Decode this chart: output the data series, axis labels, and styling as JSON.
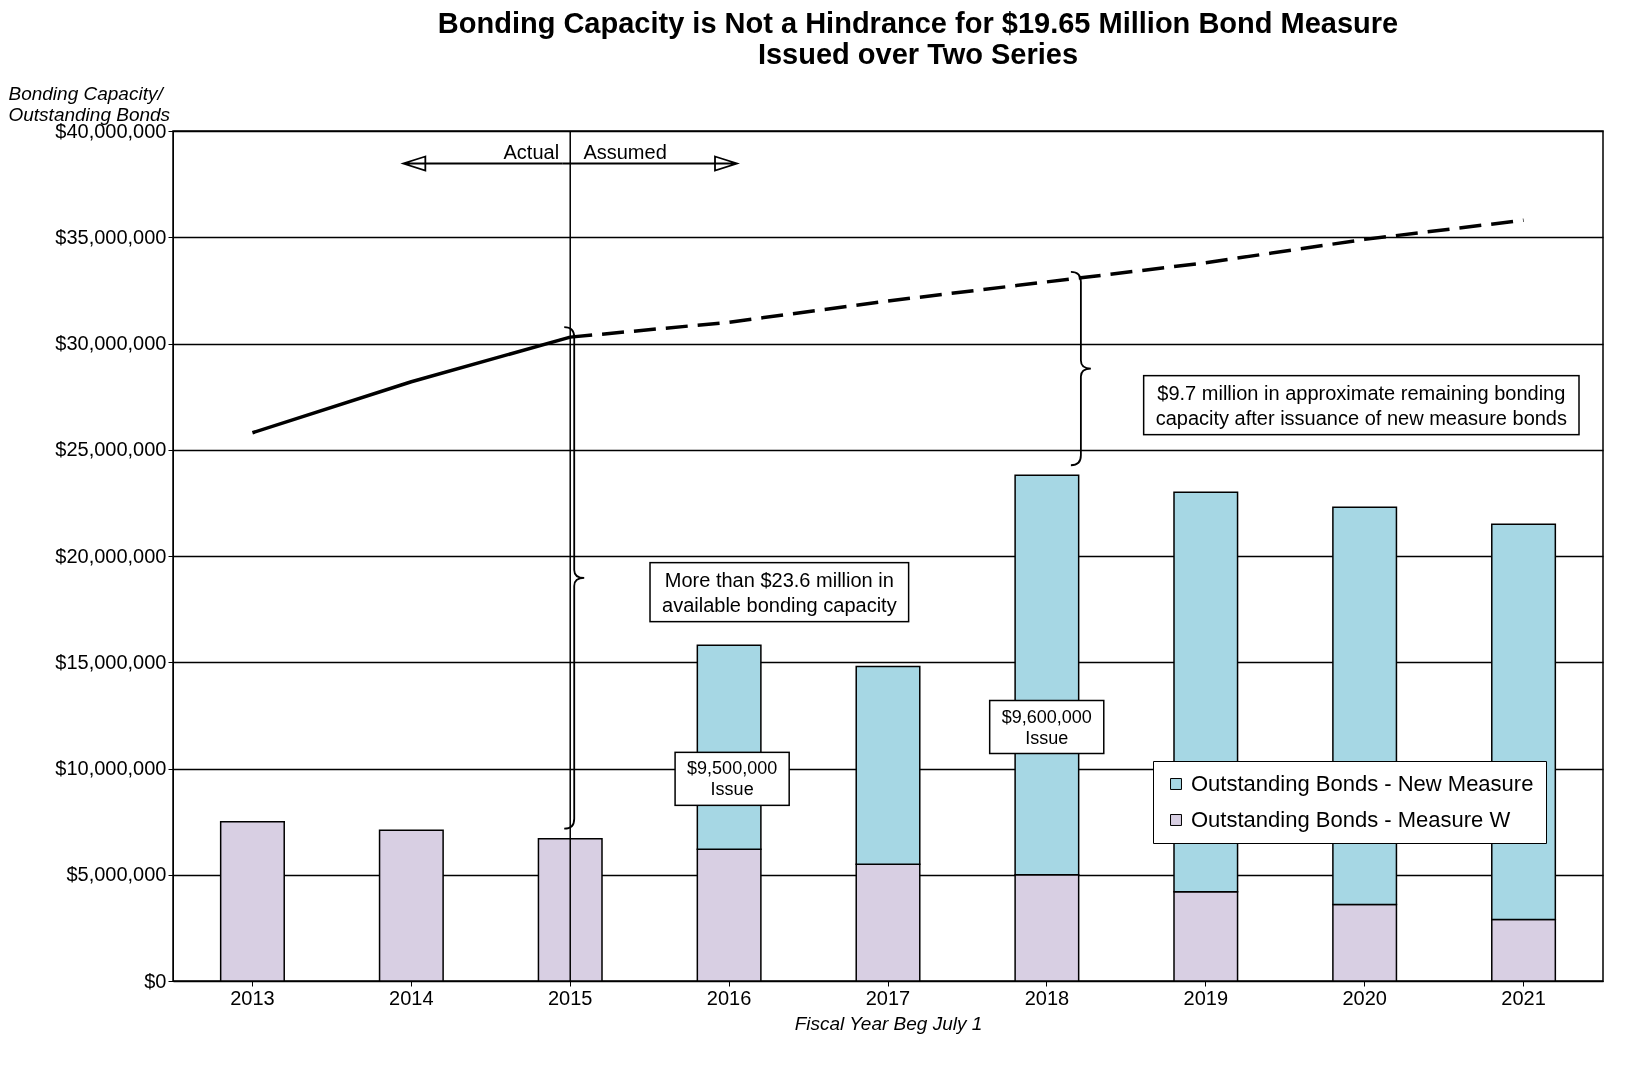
{
  "chart_data": {
    "type": "bar",
    "title": "Bonding Capacity is Not a Hindrance for $19.65 Million Bond Measure\nIssued over Two Series",
    "xlabel": "Fiscal Year Beg July 1",
    "ylabel": "Bonding Capacity/\nOutstanding Bonds",
    "categories": [
      "2013",
      "2014",
      "2015",
      "2016",
      "2017",
      "2018",
      "2019",
      "2020",
      "2021"
    ],
    "stacked": true,
    "series": [
      {
        "name": "Outstanding Bonds - Measure W",
        "color": "#d8cfe3",
        "values": [
          7500000,
          7100000,
          6700000,
          6200000,
          5500000,
          5000000,
          4200000,
          3600000,
          2900000
        ]
      },
      {
        "name": "Outstanding Bonds - New Measure",
        "color": "#a6d7e4",
        "values": [
          null,
          null,
          null,
          9600000,
          9300000,
          18800000,
          18800000,
          18700000,
          18600000
        ]
      },
      {
        "type": "line",
        "color": "#000000",
        "line_style": "solid",
        "values": [
          25800000,
          28200000,
          30300000,
          null,
          null,
          null,
          null,
          null,
          null
        ]
      },
      {
        "type": "line",
        "color": "#000000",
        "line_style": "dashed",
        "values": [
          null,
          null,
          30300000,
          31000000,
          32000000,
          32900000,
          33800000,
          34900000,
          35800000
        ]
      }
    ],
    "ylim": [
      0,
      40000000
    ],
    "yticks": [
      {
        "value": 0,
        "label": "$0"
      },
      {
        "value": 5000000,
        "label": "$5,000,000"
      },
      {
        "value": 10000000,
        "label": "$10,000,000"
      },
      {
        "value": 15000000,
        "label": "$15,000,000"
      },
      {
        "value": 20000000,
        "label": "$20,000,000"
      },
      {
        "value": 25000000,
        "label": "$25,000,000"
      },
      {
        "value": 30000000,
        "label": "$30,000,000"
      },
      {
        "value": 35000000,
        "label": "$35,000,000"
      },
      {
        "value": 40000000,
        "label": "$40,000,000"
      }
    ],
    "grid": "y",
    "legend": "bottom right",
    "ref_lines": [
      {
        "axis": "x",
        "value": "2015",
        "color": "#000000"
      }
    ],
    "annotations": [
      "Actual",
      "Assumed",
      "More than $23.6 million in\navailable bonding capacity",
      "$9.7 million in approximate remaining bonding\ncapacity after issuance of new measure bonds",
      "$9,500,000\nIssue",
      "$9,600,000\nIssue"
    ]
  }
}
